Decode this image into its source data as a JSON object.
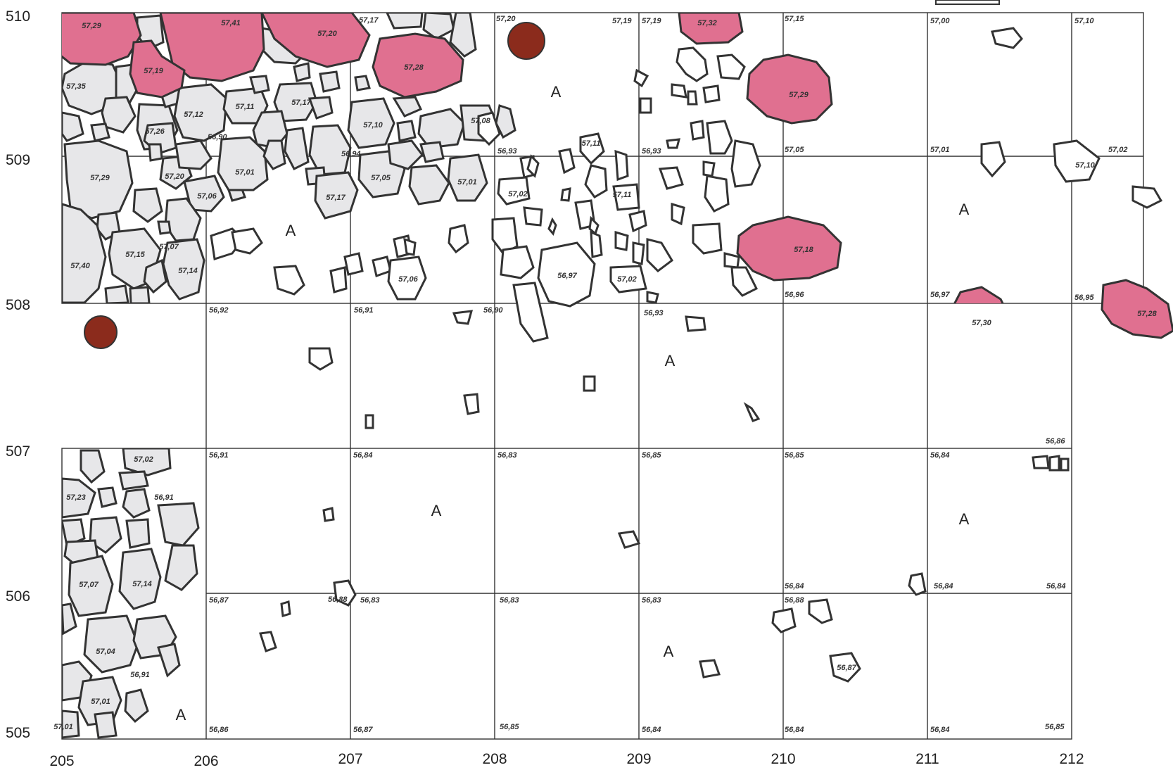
{
  "colors": {
    "grey_stone": "#e7e7e9",
    "pink_stone": "#e07090",
    "marker": "#8b2b1c",
    "outline": "#333333"
  },
  "axes": {
    "x_labels": [
      "205",
      "206",
      "207",
      "208",
      "209",
      "210",
      "211",
      "212"
    ],
    "y_labels": [
      "510",
      "509",
      "508",
      "507",
      "506",
      "505"
    ]
  },
  "zone_label": "A",
  "elevations": {
    "r510": [
      "57,17",
      "57,20",
      "57,19",
      "57,19",
      "57,15",
      "57,00",
      "57,10"
    ],
    "r509": [
      "56,90",
      "56,94",
      "56,93",
      "56,93",
      "57,05",
      "57,01",
      "57,02"
    ],
    "r508": [
      "56,92",
      "56,91",
      "56,90",
      "56,93",
      "56,96",
      "56,97",
      "56,95"
    ],
    "r507": [
      "56,91",
      "56,84",
      "56,83",
      "56,85",
      "56,85",
      "56,84",
      "56,86"
    ],
    "r506": [
      "56,87",
      "56,88",
      "56,83",
      "56,83",
      "56,83",
      "56,84",
      "56,84",
      "56,84",
      "56,88"
    ],
    "r505": [
      "56,86",
      "56,87",
      "56,85",
      "56,84",
      "56,84",
      "56,84",
      "56,85"
    ]
  },
  "stone_labels": {
    "pink": [
      "57,29",
      "57,41",
      "57,20",
      "57,19",
      "57,28",
      "57,32",
      "57,29",
      "57,18",
      "57,30",
      "57,28"
    ],
    "grey_top": [
      "57,35",
      "57,12",
      "57,11",
      "57,17",
      "57,26",
      "57,10",
      "57,08",
      "57,29",
      "57,20",
      "57,01",
      "57,05",
      "57,01",
      "57,06",
      "57,17",
      "57,15",
      "57,07",
      "57,40",
      "57,14",
      "57,06"
    ],
    "white_top": [
      "57,11",
      "57,02",
      "57,11",
      "56,97",
      "57,02",
      "57,10",
      "56,87"
    ],
    "grey_bottom": [
      "57,02",
      "57,23",
      "56,91",
      "57,07",
      "57,14",
      "57,04",
      "56,91",
      "57,01",
      "57,01"
    ]
  }
}
